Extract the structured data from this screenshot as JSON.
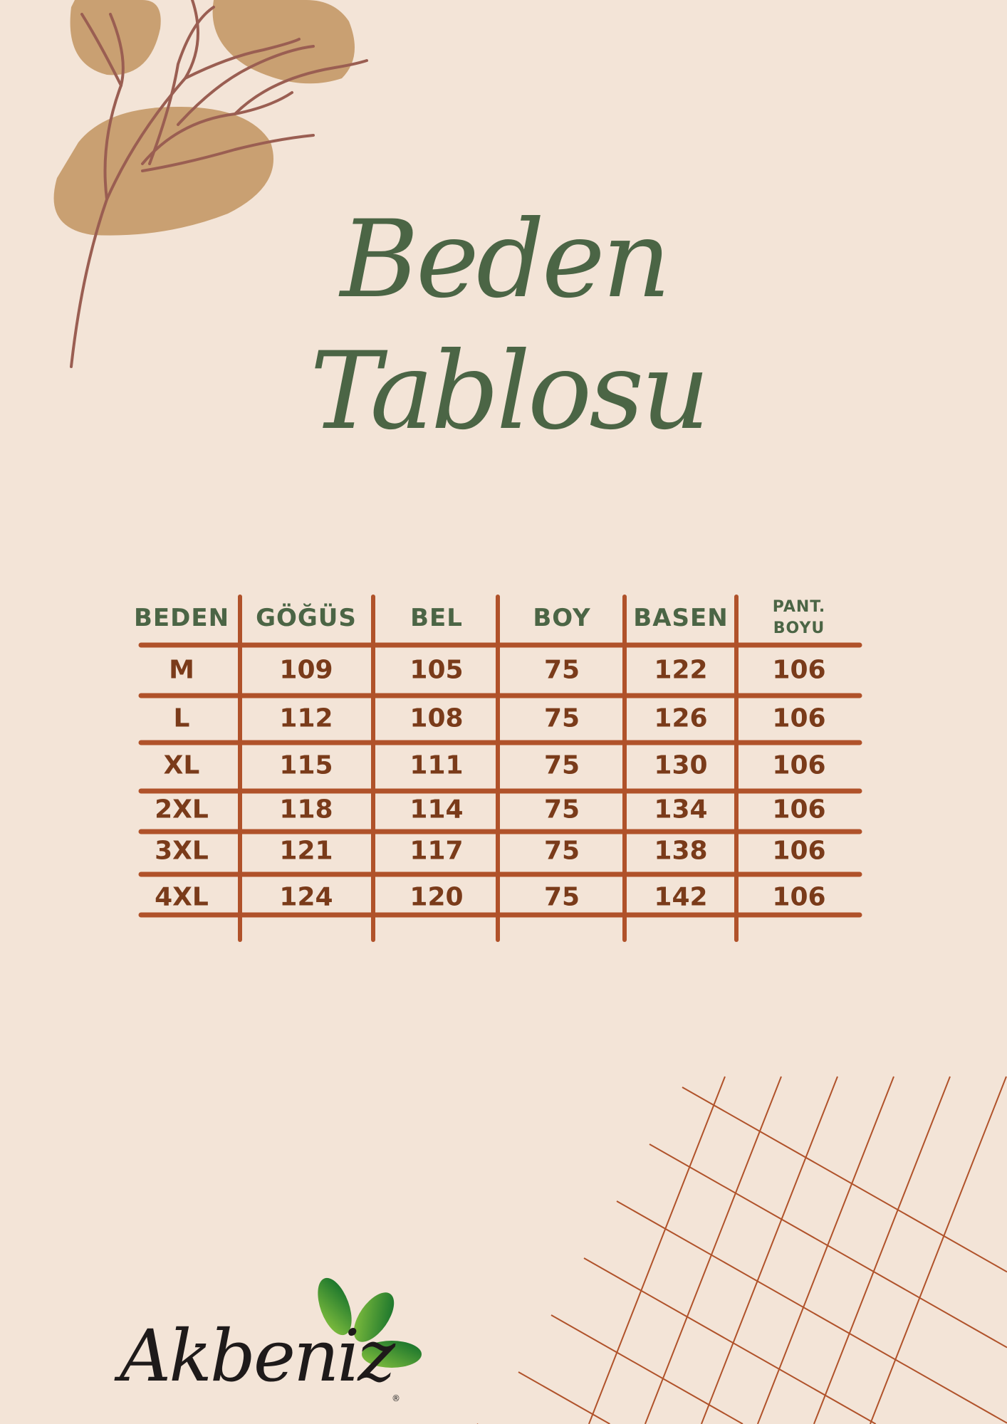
{
  "title": {
    "line1": "Beden",
    "line2": "Tablosu"
  },
  "table": {
    "headers": [
      "BEDEN",
      "GÖĞÜS",
      "BEL",
      "BOY",
      "BASEN",
      "PANT.\nBOYU"
    ],
    "rows": [
      [
        "M",
        "109",
        "105",
        "75",
        "122",
        "106"
      ],
      [
        "L",
        "112",
        "108",
        "75",
        "126",
        "106"
      ],
      [
        "XL",
        "115",
        "111",
        "75",
        "130",
        "106"
      ],
      [
        "2XL",
        "118",
        "114",
        "75",
        "134",
        "106"
      ],
      [
        "3XL",
        "121",
        "117",
        "75",
        "138",
        "106"
      ],
      [
        "4XL",
        "124",
        "120",
        "75",
        "142",
        "106"
      ]
    ]
  },
  "logo": {
    "text": "Akbeniz",
    "registered": "®"
  },
  "colors": {
    "background": "#f3e4d7",
    "title": "#4b6545",
    "header": "#4b6545",
    "values": "#7a3b1a",
    "grid_lines": "#b0522a",
    "leaf_blob": "#c9a072",
    "branch": "#9a5e52",
    "logo_leaf": "#1e8a3a"
  }
}
